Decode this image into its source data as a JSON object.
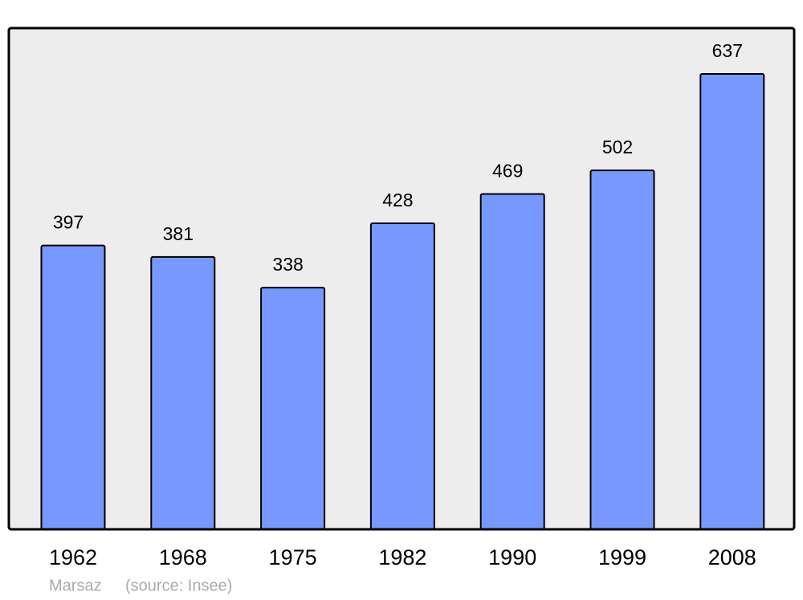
{
  "chart_data": {
    "type": "bar",
    "categories": [
      "1962",
      "1968",
      "1975",
      "1982",
      "1990",
      "1999",
      "2008"
    ],
    "values": [
      397,
      381,
      338,
      428,
      469,
      502,
      637
    ],
    "color": "#7799ff",
    "annotations": [
      "Marsaz",
      "(source: Insee)"
    ]
  }
}
